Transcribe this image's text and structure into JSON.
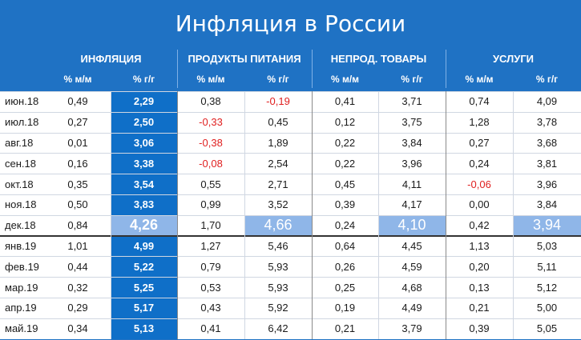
{
  "title": "Инфляция в России",
  "chart_data": {
    "type": "table",
    "groups": [
      "ИНФЛЯЦИЯ",
      "ПРОДУКТЫ ПИТАНИЯ",
      "НЕПРОД. ТОВАРЫ",
      "УСЛУГИ"
    ],
    "subheaders": [
      "% м/м",
      "% г/г",
      "% м/м",
      "% г/г",
      "% м/м",
      "% г/г",
      "% м/м",
      "% г/г"
    ],
    "rows": [
      {
        "label": "июн.18",
        "values": [
          "0,49",
          "2,29",
          "0,38",
          "-0,19",
          "0,41",
          "3,71",
          "0,74",
          "4,09"
        ]
      },
      {
        "label": "июл.18",
        "values": [
          "0,27",
          "2,50",
          "-0,33",
          "0,45",
          "0,12",
          "3,75",
          "1,28",
          "3,78"
        ]
      },
      {
        "label": "авг.18",
        "values": [
          "0,01",
          "3,06",
          "-0,38",
          "1,89",
          "0,22",
          "3,84",
          "0,27",
          "3,68"
        ]
      },
      {
        "label": "сен.18",
        "values": [
          "0,16",
          "3,38",
          "-0,08",
          "2,54",
          "0,22",
          "3,96",
          "0,24",
          "3,81"
        ]
      },
      {
        "label": "окт.18",
        "values": [
          "0,35",
          "3,54",
          "0,55",
          "2,71",
          "0,45",
          "4,11",
          "-0,06",
          "3,96"
        ]
      },
      {
        "label": "ноя.18",
        "values": [
          "0,50",
          "3,83",
          "0,99",
          "3,52",
          "0,39",
          "4,17",
          "0,00",
          "3,84"
        ]
      },
      {
        "label": "дек.18",
        "values": [
          "0,84",
          "4,26",
          "1,70",
          "4,66",
          "0,24",
          "4,10",
          "0,42",
          "3,94"
        ]
      },
      {
        "label": "янв.19",
        "values": [
          "1,01",
          "4,99",
          "1,27",
          "5,46",
          "0,64",
          "4,45",
          "1,13",
          "5,03"
        ]
      },
      {
        "label": "фев.19",
        "values": [
          "0,44",
          "5,22",
          "0,79",
          "5,93",
          "0,26",
          "4,59",
          "0,20",
          "5,11"
        ]
      },
      {
        "label": "мар.19",
        "values": [
          "0,32",
          "5,25",
          "0,53",
          "5,93",
          "0,25",
          "4,68",
          "0,13",
          "5,12"
        ]
      },
      {
        "label": "апр.19",
        "values": [
          "0,29",
          "5,17",
          "0,43",
          "5,92",
          "0,19",
          "4,49",
          "0,21",
          "5,00"
        ]
      },
      {
        "label": "май.19",
        "values": [
          "0,34",
          "5,13",
          "0,41",
          "6,42",
          "0,21",
          "3,79",
          "0,39",
          "5,05"
        ]
      }
    ],
    "highlight_row": "дек.18",
    "colors": {
      "background": "#1f72c4",
      "emphasis_column": "#0f6fc8",
      "highlight": "#8fb6e8",
      "negative": "#e02020"
    }
  }
}
